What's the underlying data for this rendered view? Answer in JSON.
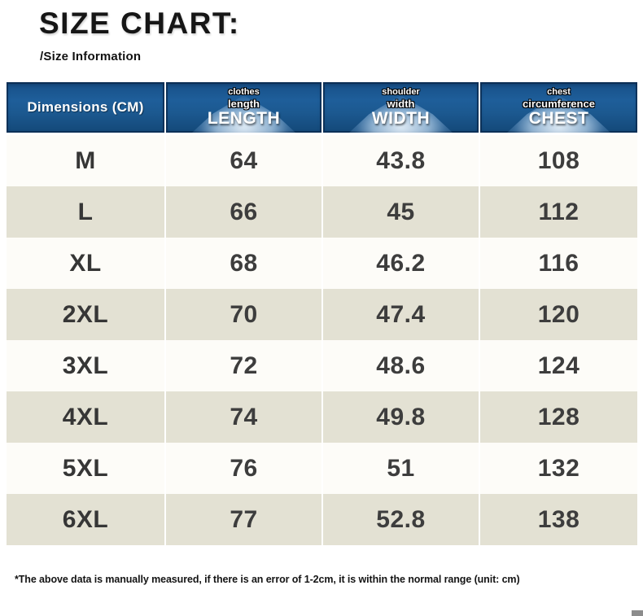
{
  "page": {
    "title": "SIZE CHART:",
    "subtitle": "/Size Information",
    "footnote": "*The above data is manually measured, if there is an error of 1-2cm, it is within the normal range (unit: cm)"
  },
  "colors": {
    "header_blue": "#1c5990",
    "header_blue_dark": "#134878",
    "row_beige": "#e3e1d3",
    "row_white": "#fdfcf8",
    "value_text": "#3d3d3d",
    "corner_fragment_gray": "#8c8c8c"
  },
  "table": {
    "header": {
      "dimensions": "Dimensions (CM)",
      "cols": [
        {
          "sub1": "clothes",
          "sub2": "length",
          "main": "LENGTH"
        },
        {
          "sub1": "shoulder",
          "sub2": "width",
          "main": "WIDTH"
        },
        {
          "sub1": "chest",
          "sub2": "circumference",
          "main": "CHEST"
        }
      ]
    },
    "rows": [
      {
        "size": "M",
        "length": "64",
        "width": "43.8",
        "chest": "108"
      },
      {
        "size": "L",
        "length": "66",
        "width": "45",
        "chest": "112"
      },
      {
        "size": "XL",
        "length": "68",
        "width": "46.2",
        "chest": "116"
      },
      {
        "size": "2XL",
        "length": "70",
        "width": "47.4",
        "chest": "120"
      },
      {
        "size": "3XL",
        "length": "72",
        "width": "48.6",
        "chest": "124"
      },
      {
        "size": "4XL",
        "length": "74",
        "width": "49.8",
        "chest": "128"
      },
      {
        "size": "5XL",
        "length": "76",
        "width": "51",
        "chest": "132"
      },
      {
        "size": "6XL",
        "length": "77",
        "width": "52.8",
        "chest": "138"
      }
    ]
  },
  "chart_data": {
    "type": "table",
    "title": "SIZE CHART:",
    "columns": [
      "Dimensions (CM)",
      "LENGTH (clothes length)",
      "WIDTH (shoulder width)",
      "CHEST (chest circumference)"
    ],
    "rows": [
      [
        "M",
        64,
        43.8,
        108
      ],
      [
        "L",
        66,
        45,
        112
      ],
      [
        "XL",
        68,
        46.2,
        116
      ],
      [
        "2XL",
        70,
        47.4,
        120
      ],
      [
        "3XL",
        72,
        48.6,
        124
      ],
      [
        "4XL",
        74,
        49.8,
        128
      ],
      [
        "5XL",
        76,
        51,
        132
      ],
      [
        "6XL",
        77,
        52.8,
        138
      ]
    ],
    "notes": "*The above data is manually measured, if there is an error of 1-2cm, it is within the normal range (unit: cm)",
    "unit": "cm"
  }
}
